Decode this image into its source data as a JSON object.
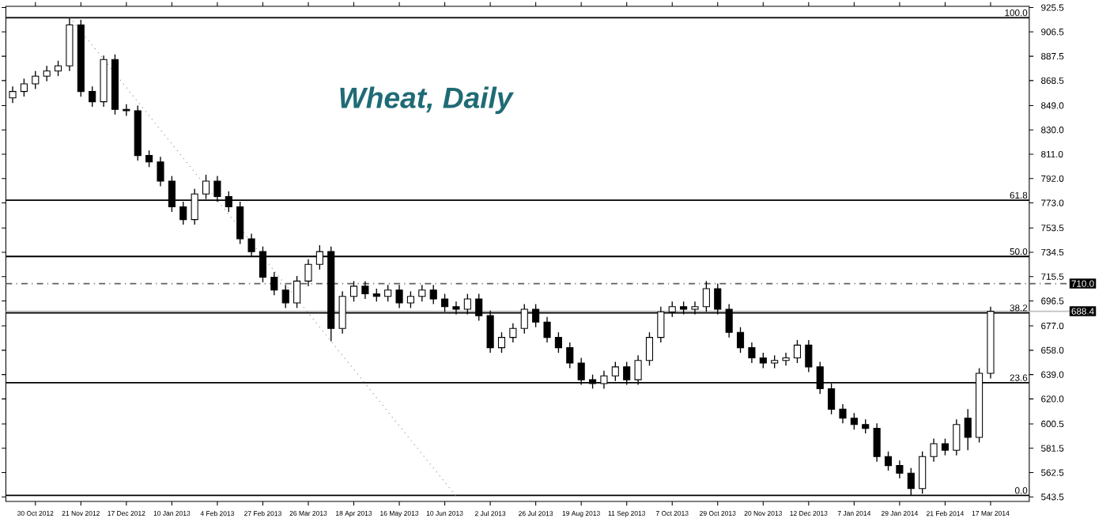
{
  "chart_data": {
    "type": "candlestick",
    "title": "Wheat, Daily",
    "color": "#000000",
    "categories": [
      null,
      null,
      "30 Oct 2012",
      null,
      null,
      null,
      "21 Nov 2012",
      null,
      null,
      null,
      "17 Dec 2012",
      null,
      null,
      null,
      "10 Jan 2013",
      null,
      null,
      null,
      "4 Feb 2013",
      null,
      null,
      null,
      "27 Feb 2013",
      null,
      null,
      null,
      "26 Mar 2013",
      null,
      null,
      null,
      "18 Apr 2013",
      null,
      null,
      null,
      "16 May 2013",
      null,
      null,
      null,
      "10 Jun 2013",
      null,
      null,
      null,
      "2 Jul 2013",
      null,
      null,
      null,
      "26 Jul 2013",
      null,
      null,
      null,
      "19 Aug 2013",
      null,
      null,
      null,
      "11 Sep 2013",
      null,
      null,
      null,
      "7 Oct 2013",
      null,
      null,
      null,
      "29 Oct 2013",
      null,
      null,
      null,
      "20 Nov 2013",
      null,
      null,
      null,
      "12 Dec 2013",
      null,
      null,
      null,
      "7 Jan 2014",
      null,
      null,
      null,
      "29 Jan 2014",
      null,
      null,
      null,
      "21 Feb 2014",
      null,
      null,
      null,
      "17 Mar 2014"
    ],
    "ohlc": [
      [
        855,
        864,
        851,
        860
      ],
      [
        860,
        870,
        856,
        866
      ],
      [
        866,
        876,
        862,
        872
      ],
      [
        872,
        880,
        868,
        876
      ],
      [
        876,
        884,
        872,
        880
      ],
      [
        880,
        917.6,
        876,
        912
      ],
      [
        912,
        916,
        856,
        860
      ],
      [
        860,
        864,
        848,
        852
      ],
      [
        852,
        888,
        848,
        885
      ],
      [
        885,
        889,
        842,
        846
      ],
      [
        846,
        850,
        841,
        845
      ],
      [
        845,
        849,
        806,
        810
      ],
      [
        810,
        814,
        801,
        805
      ],
      [
        805,
        809,
        786,
        790
      ],
      [
        790,
        794,
        766,
        770
      ],
      [
        770,
        774,
        756,
        760
      ],
      [
        760,
        784,
        756,
        780
      ],
      [
        780,
        795,
        776,
        790
      ],
      [
        790,
        794,
        774,
        778
      ],
      [
        778,
        782,
        766,
        770
      ],
      [
        770,
        774,
        741,
        745
      ],
      [
        745,
        749,
        731,
        735
      ],
      [
        735,
        739,
        711,
        715
      ],
      [
        715,
        719,
        701,
        705
      ],
      [
        705,
        709,
        691,
        695
      ],
      [
        695,
        716,
        691,
        712
      ],
      [
        712,
        729,
        708,
        725
      ],
      [
        725,
        740,
        721,
        735
      ],
      [
        735,
        739,
        665,
        675
      ],
      [
        675,
        704,
        671,
        700
      ],
      [
        700,
        712,
        696,
        708
      ],
      [
        708,
        712,
        698,
        702
      ],
      [
        702,
        706,
        696,
        700
      ],
      [
        700,
        709,
        696,
        705
      ],
      [
        705,
        709,
        691,
        695
      ],
      [
        695,
        704,
        691,
        700
      ],
      [
        700,
        709,
        696,
        705
      ],
      [
        705,
        709,
        694,
        698
      ],
      [
        698,
        702,
        688,
        692
      ],
      [
        692,
        696,
        686,
        690
      ],
      [
        690,
        702,
        686,
        698
      ],
      [
        698,
        702,
        681,
        685
      ],
      [
        685,
        689,
        656,
        660
      ],
      [
        660,
        672,
        656,
        668
      ],
      [
        668,
        679,
        664,
        675
      ],
      [
        675,
        694,
        671,
        690
      ],
      [
        690,
        694,
        676,
        680
      ],
      [
        680,
        684,
        664,
        668
      ],
      [
        668,
        672,
        656,
        660
      ],
      [
        660,
        664,
        644,
        648
      ],
      [
        648,
        652,
        631,
        635
      ],
      [
        635,
        639,
        628,
        632
      ],
      [
        632,
        642,
        628,
        638
      ],
      [
        638,
        649,
        634,
        645
      ],
      [
        645,
        649,
        631,
        635
      ],
      [
        635,
        654,
        631,
        650
      ],
      [
        650,
        672,
        646,
        668
      ],
      [
        668,
        692,
        664,
        688
      ],
      [
        688,
        696,
        684,
        692
      ],
      [
        692,
        696,
        686,
        690
      ],
      [
        690,
        696,
        686,
        692
      ],
      [
        692,
        712,
        688,
        706
      ],
      [
        706,
        710,
        686,
        690
      ],
      [
        690,
        694,
        668,
        672
      ],
      [
        672,
        676,
        656,
        660
      ],
      [
        660,
        664,
        648,
        652
      ],
      [
        652,
        656,
        644,
        648
      ],
      [
        648,
        654,
        644,
        650
      ],
      [
        650,
        656,
        646,
        652
      ],
      [
        652,
        666,
        648,
        662
      ],
      [
        662,
        666,
        641,
        645
      ],
      [
        645,
        649,
        624,
        628
      ],
      [
        628,
        632,
        608,
        612
      ],
      [
        612,
        616,
        601,
        605
      ],
      [
        605,
        609,
        596,
        600
      ],
      [
        600,
        604,
        593,
        597
      ],
      [
        597,
        601,
        571,
        575
      ],
      [
        575,
        579,
        564,
        568
      ],
      [
        568,
        572,
        558,
        562
      ],
      [
        562,
        566,
        544.7,
        550
      ],
      [
        550,
        579,
        546,
        575
      ],
      [
        575,
        589,
        571,
        585
      ],
      [
        585,
        589,
        576,
        580
      ],
      [
        580,
        604,
        576,
        600
      ],
      [
        605,
        612,
        580,
        590
      ],
      [
        590,
        644,
        586,
        640
      ],
      [
        640,
        692,
        636,
        688.4
      ]
    ],
    "series": [
      {
        "type": "line",
        "color": "#808080",
        "line_style": "dotted",
        "values": [
          null,
          null,
          null,
          null,
          null,
          918,
          907,
          896,
          885,
          874,
          863,
          852,
          841,
          830,
          819,
          808,
          797,
          786,
          775,
          764,
          753,
          742,
          731,
          720,
          709,
          698,
          687,
          676,
          665,
          654,
          643,
          632,
          621,
          610,
          599,
          588,
          577,
          566,
          555,
          544,
          null,
          null,
          null,
          null,
          null,
          null,
          null,
          null,
          null,
          null,
          null,
          null,
          null,
          null,
          null,
          null,
          null,
          null,
          null,
          null,
          null,
          null,
          null,
          null,
          null,
          null,
          null,
          null,
          null,
          null,
          null,
          null,
          null,
          null,
          null,
          null,
          null,
          null,
          null,
          null,
          null,
          null,
          null,
          null,
          null,
          null,
          null
        ]
      }
    ],
    "ylim": [
      540,
      926.5
    ],
    "yticks": [
      {
        "value": 543.5,
        "label": "543.5"
      },
      {
        "value": 562.5,
        "label": "562.5"
      },
      {
        "value": 581.5,
        "label": "581.5"
      },
      {
        "value": 600.5,
        "label": "600.5"
      },
      {
        "value": 620,
        "label": "620.0"
      },
      {
        "value": 639,
        "label": "639.0"
      },
      {
        "value": 658,
        "label": "658.0"
      },
      {
        "value": 677,
        "label": "677.0"
      },
      {
        "value": 696.5,
        "label": "696.5"
      },
      {
        "value": 715.5,
        "label": "715.5"
      },
      {
        "value": 734.5,
        "label": "734.5"
      },
      {
        "value": 753.5,
        "label": "753.5"
      },
      {
        "value": 773,
        "label": "773.0"
      },
      {
        "value": 792,
        "label": "792.0"
      },
      {
        "value": 811,
        "label": "811.0"
      },
      {
        "value": 830,
        "label": "830.0"
      },
      {
        "value": 849,
        "label": "849.0"
      },
      {
        "value": 868.5,
        "label": "868.5"
      },
      {
        "value": 887.5,
        "label": "887.5"
      },
      {
        "value": 906.5,
        "label": "906.5"
      },
      {
        "value": 925.5,
        "label": "925.5"
      }
    ],
    "ref_lines": [
      {
        "axis": "y",
        "value": 917.6,
        "color": "#000000"
      },
      {
        "axis": "y",
        "value": 775.1,
        "color": "#000000"
      },
      {
        "axis": "y",
        "value": 731.2,
        "color": "#000000"
      },
      {
        "axis": "y",
        "value": 687.2,
        "color": "#000000"
      },
      {
        "axis": "y",
        "value": 632.7,
        "color": "#000000"
      },
      {
        "axis": "y",
        "value": 544.7,
        "color": "#000000"
      },
      {
        "axis": "y",
        "value": 710.0,
        "label": "710.0",
        "color": "#606060",
        "line_style": "dashdot"
      },
      {
        "axis": "y",
        "value": 688.4,
        "label": "688.4",
        "color": "#c0c0c0"
      }
    ],
    "annotations": [
      {
        "text": "100.0",
        "y": 917.6
      },
      {
        "text": "61.8",
        "y": 775.1
      },
      {
        "text": "50.0",
        "y": 731.2
      },
      {
        "text": "38.2",
        "y": 687.2
      },
      {
        "text": "23.6",
        "y": 632.7
      },
      {
        "text": "0.0",
        "y": 544.7
      }
    ],
    "grid": false
  }
}
